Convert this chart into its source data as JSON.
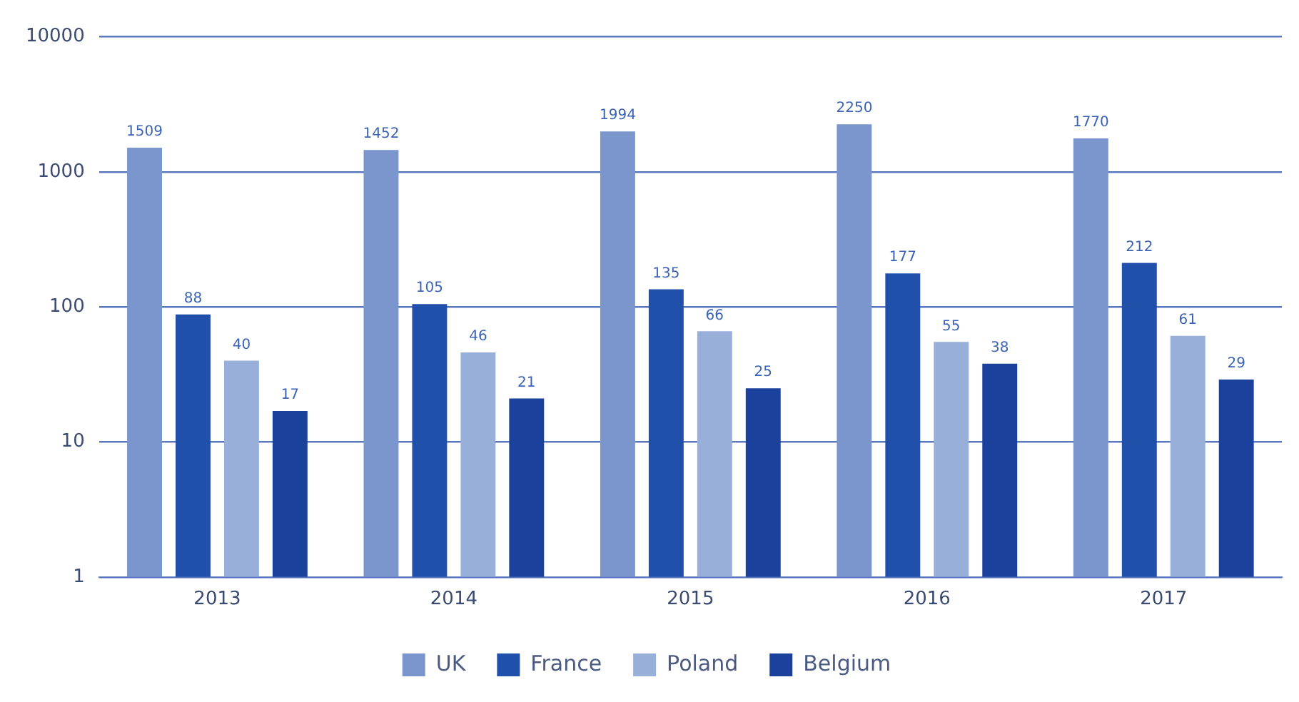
{
  "chart_data": {
    "type": "bar",
    "categories": [
      "2013",
      "2014",
      "2015",
      "2016",
      "2017"
    ],
    "series": [
      {
        "name": "UK",
        "color": "#7b96cc",
        "values": [
          1509,
          1452,
          1994,
          2250,
          1770
        ]
      },
      {
        "name": "France",
        "color": "#2150aa",
        "values": [
          88,
          105,
          135,
          177,
          212
        ]
      },
      {
        "name": "Poland",
        "color": "#98afda",
        "values": [
          40,
          46,
          66,
          55,
          61
        ]
      },
      {
        "name": "Belgium",
        "color": "#1c419c",
        "values": [
          17,
          21,
          25,
          38,
          29
        ]
      }
    ],
    "log": "y",
    "ylim": [
      1,
      10000
    ],
    "yticks": [
      1,
      10,
      100,
      1000,
      10000
    ],
    "grid": "y",
    "legend": "bottom",
    "data_labels": true
  }
}
